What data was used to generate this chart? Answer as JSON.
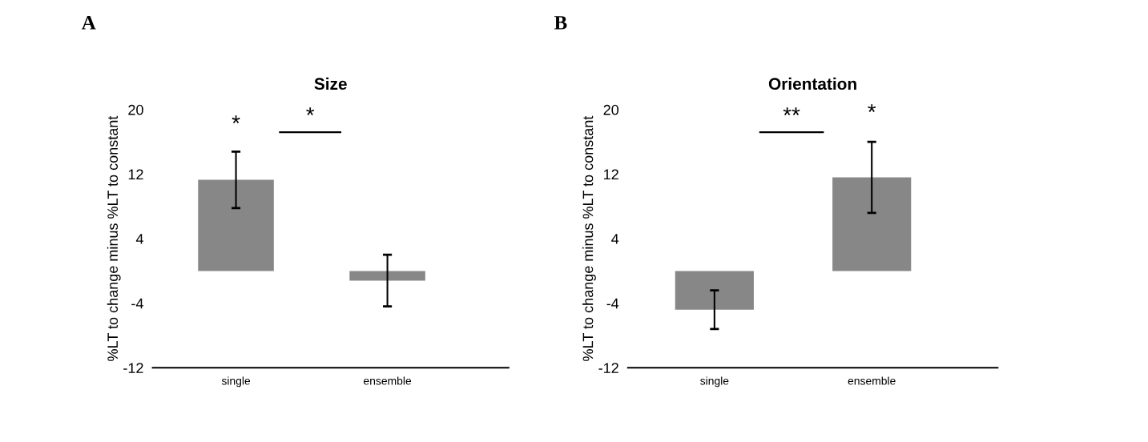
{
  "chart_data": [
    {
      "type": "bar",
      "title": "Size",
      "ylabel": "%LT to change minus %LT to constant",
      "categories": [
        "single",
        "ensemble"
      ],
      "values": [
        11.3,
        -1.2
      ],
      "errors": [
        3.5,
        3.2
      ],
      "color": "#878787",
      "ylim": [
        -12,
        20
      ],
      "yticks": [
        -12,
        -4,
        4,
        12,
        20
      ],
      "grid": false,
      "annotations": [
        "A",
        "*",
        "*"
      ]
    },
    {
      "type": "bar",
      "title": "Orientation",
      "ylabel": "%LT to change minus %LT to constant",
      "categories": [
        "single",
        "ensemble"
      ],
      "values": [
        -4.8,
        11.6
      ],
      "errors": [
        2.4,
        4.4
      ],
      "color": "#878787",
      "ylim": [
        -12,
        20
      ],
      "yticks": [
        -12,
        -4,
        4,
        12,
        20
      ],
      "grid": false,
      "annotations": [
        "B",
        "**",
        "*"
      ]
    }
  ]
}
